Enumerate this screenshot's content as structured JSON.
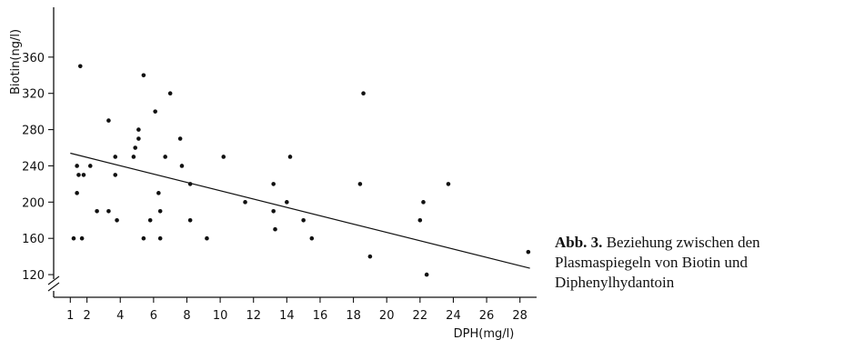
{
  "chart_data": {
    "type": "scatter",
    "xlabel": "DPH(mg/l)",
    "ylabel": "Biotin(ng/l)",
    "x_ticks": [
      1,
      2,
      4,
      6,
      8,
      10,
      12,
      14,
      16,
      18,
      20,
      22,
      24,
      26,
      28
    ],
    "y_ticks": [
      120,
      160,
      200,
      240,
      280,
      320,
      360
    ],
    "xlim": [
      0,
      29
    ],
    "ylim": [
      95,
      415
    ],
    "y_axis_break": true,
    "grid": false,
    "points": [
      {
        "x": 1.2,
        "y": 160
      },
      {
        "x": 1.4,
        "y": 240
      },
      {
        "x": 1.4,
        "y": 210
      },
      {
        "x": 1.5,
        "y": 230
      },
      {
        "x": 1.6,
        "y": 350
      },
      {
        "x": 1.7,
        "y": 160
      },
      {
        "x": 1.8,
        "y": 230
      },
      {
        "x": 2.2,
        "y": 240
      },
      {
        "x": 2.6,
        "y": 190
      },
      {
        "x": 3.3,
        "y": 290
      },
      {
        "x": 3.3,
        "y": 190
      },
      {
        "x": 3.7,
        "y": 250
      },
      {
        "x": 3.7,
        "y": 230
      },
      {
        "x": 3.8,
        "y": 180
      },
      {
        "x": 4.8,
        "y": 250
      },
      {
        "x": 4.9,
        "y": 260
      },
      {
        "x": 5.1,
        "y": 280
      },
      {
        "x": 5.1,
        "y": 270
      },
      {
        "x": 5.4,
        "y": 340
      },
      {
        "x": 5.4,
        "y": 160
      },
      {
        "x": 5.8,
        "y": 180
      },
      {
        "x": 6.1,
        "y": 300
      },
      {
        "x": 6.3,
        "y": 210
      },
      {
        "x": 6.4,
        "y": 190
      },
      {
        "x": 6.4,
        "y": 160
      },
      {
        "x": 6.7,
        "y": 250
      },
      {
        "x": 7.0,
        "y": 320
      },
      {
        "x": 7.6,
        "y": 270
      },
      {
        "x": 7.7,
        "y": 240
      },
      {
        "x": 8.2,
        "y": 220
      },
      {
        "x": 8.2,
        "y": 180
      },
      {
        "x": 9.2,
        "y": 160
      },
      {
        "x": 10.2,
        "y": 250
      },
      {
        "x": 11.5,
        "y": 200
      },
      {
        "x": 13.2,
        "y": 220
      },
      {
        "x": 13.2,
        "y": 190
      },
      {
        "x": 13.3,
        "y": 170
      },
      {
        "x": 14.0,
        "y": 200
      },
      {
        "x": 14.2,
        "y": 250
      },
      {
        "x": 15.0,
        "y": 180
      },
      {
        "x": 15.5,
        "y": 160
      },
      {
        "x": 18.4,
        "y": 220
      },
      {
        "x": 18.6,
        "y": 320
      },
      {
        "x": 19.0,
        "y": 140
      },
      {
        "x": 22.0,
        "y": 180
      },
      {
        "x": 22.2,
        "y": 200
      },
      {
        "x": 22.4,
        "y": 120
      },
      {
        "x": 23.7,
        "y": 220
      },
      {
        "x": 28.5,
        "y": 145
      }
    ],
    "trendline": {
      "x": [
        1.0,
        28.6
      ],
      "y": [
        254,
        127
      ]
    }
  },
  "caption": {
    "label": "Abb. 3.",
    "text": "Beziehung zwischen den Plasmaspiegeln von Biotin und Diphenylhydantoin"
  }
}
